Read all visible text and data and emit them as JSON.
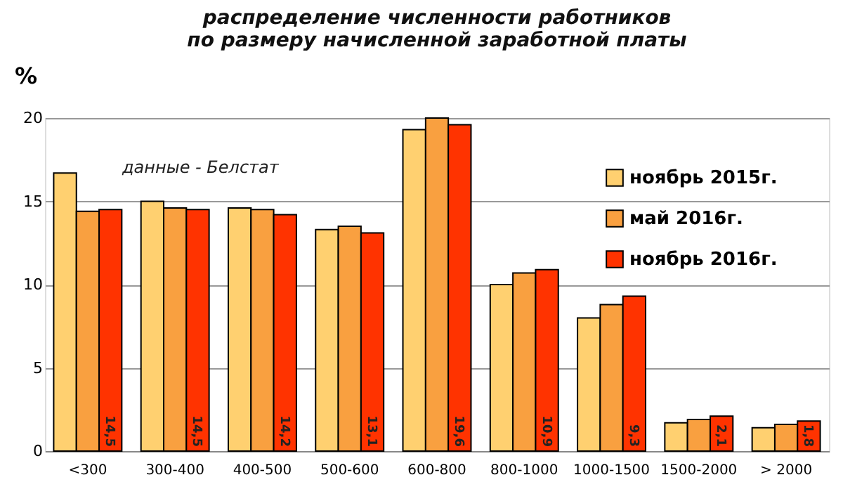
{
  "chart_data": {
    "type": "bar",
    "title": "распределение численности работников\nпо размеру начисленной заработной платы",
    "ylabel": "%",
    "annotations": [
      "данные - Белстат"
    ],
    "categories": [
      "<300",
      "300-400",
      "400-500",
      "500-600",
      "600-800",
      "800-1000",
      "1000-1500",
      "1500-2000",
      "> 2000"
    ],
    "series": [
      {
        "name": "ноябрь 2015г.",
        "color": "#ffd070",
        "values": [
          16.7,
          15.0,
          14.6,
          13.3,
          19.3,
          10.0,
          8.0,
          1.7,
          1.4
        ]
      },
      {
        "name": "май 2016г.",
        "color": "#f9a040",
        "values": [
          14.4,
          14.6,
          14.5,
          13.5,
          20.0,
          10.7,
          8.8,
          1.9,
          1.6
        ]
      },
      {
        "name": "ноябрь 2016г.",
        "color": "#ff3300",
        "values": [
          14.5,
          14.5,
          14.2,
          13.1,
          19.6,
          10.9,
          9.3,
          2.1,
          1.8
        ],
        "value_labels": [
          "14,5",
          "14,5",
          "14,2",
          "13,1",
          "19,6",
          "10,9",
          "9,3",
          "2,1",
          "1,8"
        ]
      }
    ],
    "ylim": [
      0,
      20
    ],
    "yticks": [
      0,
      5,
      10,
      15,
      20
    ],
    "grid": "y",
    "legend": "top right"
  }
}
